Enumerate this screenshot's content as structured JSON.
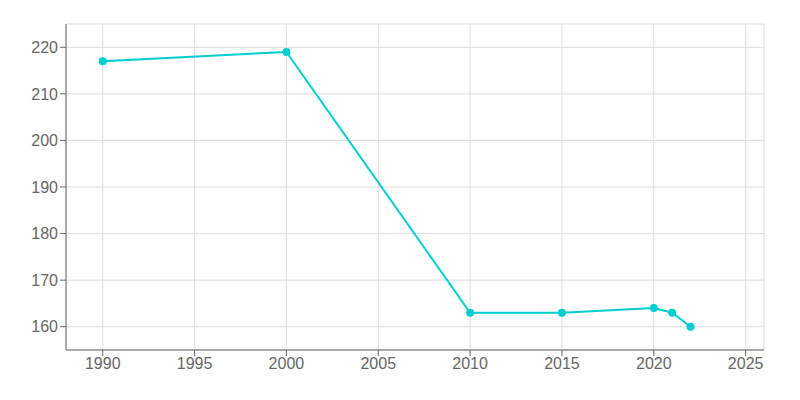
{
  "chart_data": {
    "type": "line",
    "x": [
      1990,
      2000,
      2010,
      2015,
      2020,
      2021,
      2022
    ],
    "values": [
      217,
      219,
      163,
      163,
      164,
      163,
      160
    ],
    "color": "#00CED1",
    "marker": "circle",
    "line_style": "solid",
    "xlim": [
      1988,
      2026
    ],
    "xticks": [
      1990,
      1995,
      2000,
      2005,
      2010,
      2015,
      2020,
      2025
    ],
    "ylim": [
      155,
      225
    ],
    "yticks": [
      160,
      170,
      180,
      190,
      200,
      210,
      220
    ],
    "grid": true
  }
}
